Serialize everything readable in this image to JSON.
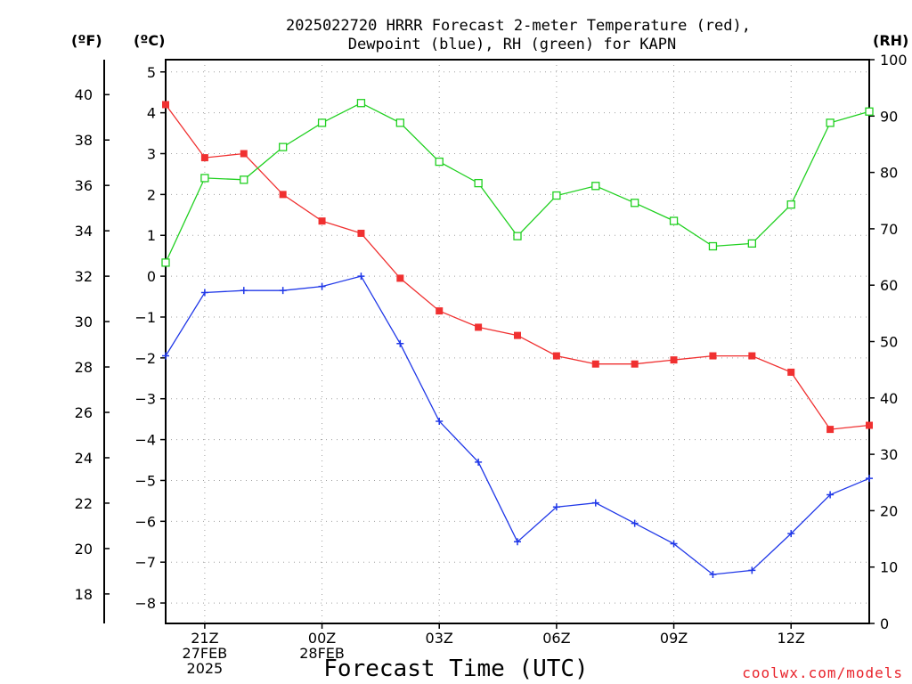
{
  "chart_data": {
    "type": "line",
    "title": [
      "2025022720 HRRR Forecast 2-meter Temperature (red),",
      "Dewpoint (blue), RH (green) for KAPN"
    ],
    "xlabel": "Forecast Time (UTC)",
    "credit": "coolwx.com/models",
    "units": {
      "f": "(ºF)",
      "c": "(ºC)",
      "rh": "(RH)"
    },
    "x_hours": [
      0,
      1,
      2,
      3,
      4,
      5,
      6,
      7,
      8,
      9,
      10,
      11,
      12,
      13,
      14,
      15,
      16,
      17,
      18
    ],
    "x_range": [
      0,
      18
    ],
    "x_ticks": [
      {
        "h": 1,
        "lines": [
          "21Z",
          "27FEB",
          "2025"
        ]
      },
      {
        "h": 4,
        "lines": [
          "00Z",
          "28FEB"
        ]
      },
      {
        "h": 7,
        "lines": [
          "03Z"
        ]
      },
      {
        "h": 10,
        "lines": [
          "06Z"
        ]
      },
      {
        "h": 13,
        "lines": [
          "09Z"
        ]
      },
      {
        "h": 16,
        "lines": [
          "12Z"
        ]
      }
    ],
    "y_left_c": {
      "range": [
        -8.5,
        5.3
      ],
      "ticks": [
        -8,
        -7,
        -6,
        -5,
        -4,
        -3,
        -2,
        -1,
        0,
        1,
        2,
        3,
        4,
        5
      ]
    },
    "y_left_f": {
      "ticks": [
        18,
        20,
        22,
        24,
        26,
        28,
        30,
        32,
        34,
        36,
        38,
        40
      ]
    },
    "y_right_rh": {
      "range": [
        0,
        100
      ],
      "ticks": [
        0,
        10,
        20,
        30,
        40,
        50,
        60,
        70,
        80,
        90,
        100
      ]
    },
    "grid": true,
    "series": [
      {
        "name": "Temperature",
        "axis": "c",
        "color": "#f03030",
        "marker": "filled-square",
        "values": [
          4.2,
          2.9,
          3.0,
          2.0,
          1.35,
          1.05,
          -0.05,
          -0.85,
          -1.25,
          -1.45,
          -1.95,
          -2.15,
          -2.15,
          -2.05,
          -1.95,
          -1.95,
          -2.35,
          -3.75,
          -3.65
        ]
      },
      {
        "name": "Dewpoint",
        "axis": "c",
        "color": "#2038e8",
        "marker": "plus",
        "values": [
          -1.95,
          -0.4,
          -0.35,
          -0.35,
          -0.25,
          0.0,
          -1.65,
          -3.55,
          -4.55,
          -6.5,
          -5.65,
          -5.55,
          -6.05,
          -6.55,
          -7.3,
          -7.2,
          -6.3,
          -5.35,
          -4.95
        ]
      },
      {
        "name": "RH",
        "axis": "rh",
        "color": "#20d020",
        "marker": "open-square",
        "values": [
          64,
          79,
          78.7,
          84.5,
          88.8,
          92.3,
          88.8,
          81.9,
          78.1,
          68.7,
          75.9,
          77.6,
          74.6,
          71.4,
          66.9,
          67.4,
          74.3,
          88.8,
          90.8
        ]
      }
    ]
  }
}
